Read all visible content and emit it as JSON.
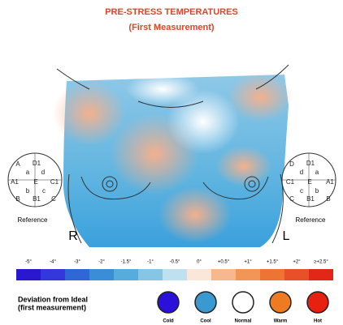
{
  "header": {
    "title": "PRE-STRESS TEMPERATURES",
    "subtitle": "(First Measurement)"
  },
  "reference_left": {
    "labels": [
      "D1",
      "A",
      "d",
      "a",
      "A1",
      "E",
      "C1",
      "b",
      "c",
      "B",
      "B1",
      "C"
    ],
    "caption": "Reference",
    "side": "R"
  },
  "reference_right": {
    "labels": [
      "D",
      "D1",
      "a",
      "d",
      "C1",
      "E",
      "A1",
      "c",
      "b",
      "C",
      "B1",
      "B"
    ],
    "caption": "Reference",
    "side": "L"
  },
  "scale": {
    "labels": [
      "-5°",
      "-4°",
      "-3°",
      "-2°",
      "-1.5°",
      "-1°",
      "-0.5°",
      "0°",
      "+0.5°",
      "+1°",
      "+1.5°",
      "+2°",
      "≥+2.5°"
    ]
  },
  "legend": {
    "title_lines": [
      "Deviation from Ideal",
      "(first measurement)"
    ],
    "items": [
      "Cold",
      "Cool",
      "Normal",
      "Warm",
      "Hot"
    ]
  }
}
